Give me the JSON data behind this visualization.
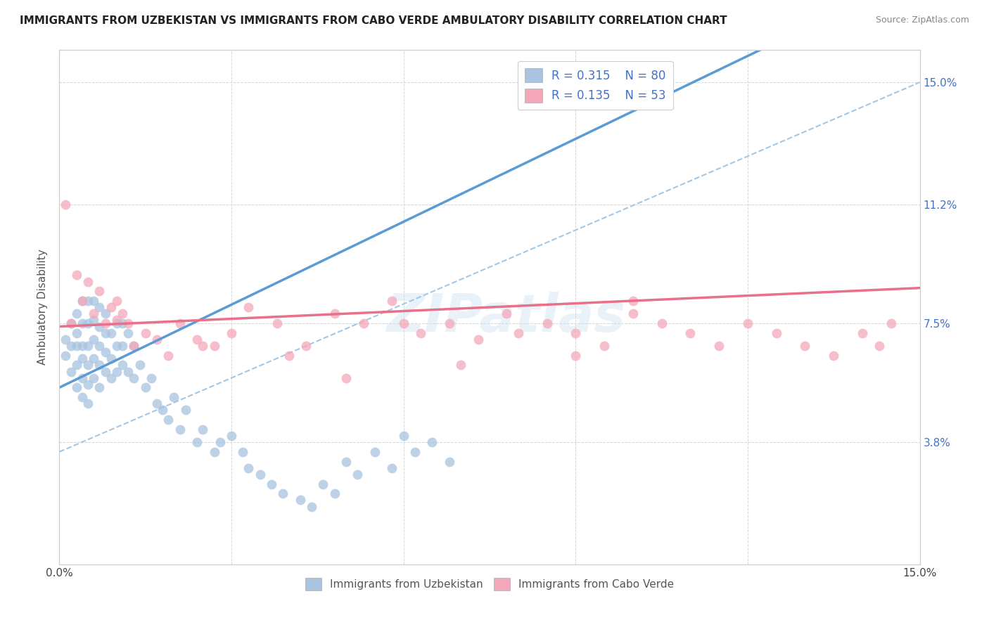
{
  "title": "IMMIGRANTS FROM UZBEKISTAN VS IMMIGRANTS FROM CABO VERDE AMBULATORY DISABILITY CORRELATION CHART",
  "source": "Source: ZipAtlas.com",
  "ylabel": "Ambulatory Disability",
  "xlim": [
    0.0,
    0.15
  ],
  "ylim": [
    0.0,
    0.16
  ],
  "r_uzbekistan": 0.315,
  "n_uzbekistan": 80,
  "r_cabo_verde": 0.135,
  "n_cabo_verde": 53,
  "color_uzbekistan": "#a8c4e0",
  "color_cabo_verde": "#f4a7b9",
  "color_uzbekistan_line": "#5b9bd5",
  "color_cabo_verde_line": "#e8708a",
  "color_dashed_line": "#a0c8e8",
  "watermark": "ZIPatlas",
  "uzbekistan_line_x0": 0.0,
  "uzbekistan_line_y0": 0.055,
  "uzbekistan_line_x1": 0.05,
  "uzbekistan_line_y1": 0.098,
  "cabo_verde_line_x0": 0.0,
  "cabo_verde_line_y0": 0.074,
  "cabo_verde_line_x1": 0.15,
  "cabo_verde_line_y1": 0.086,
  "dashed_line_x0": 0.0,
  "dashed_line_y0": 0.035,
  "dashed_line_x1": 0.15,
  "dashed_line_y1": 0.15,
  "uzbekistan_x": [
    0.001,
    0.001,
    0.002,
    0.002,
    0.002,
    0.003,
    0.003,
    0.003,
    0.003,
    0.003,
    0.004,
    0.004,
    0.004,
    0.004,
    0.004,
    0.004,
    0.005,
    0.005,
    0.005,
    0.005,
    0.005,
    0.005,
    0.006,
    0.006,
    0.006,
    0.006,
    0.006,
    0.007,
    0.007,
    0.007,
    0.007,
    0.007,
    0.008,
    0.008,
    0.008,
    0.008,
    0.009,
    0.009,
    0.009,
    0.01,
    0.01,
    0.01,
    0.011,
    0.011,
    0.011,
    0.012,
    0.012,
    0.013,
    0.013,
    0.014,
    0.015,
    0.016,
    0.017,
    0.018,
    0.019,
    0.02,
    0.021,
    0.022,
    0.024,
    0.025,
    0.027,
    0.028,
    0.03,
    0.032,
    0.033,
    0.035,
    0.037,
    0.039,
    0.042,
    0.044,
    0.046,
    0.048,
    0.05,
    0.052,
    0.055,
    0.058,
    0.06,
    0.062,
    0.065,
    0.068
  ],
  "uzbekistan_y": [
    0.065,
    0.07,
    0.06,
    0.068,
    0.075,
    0.055,
    0.062,
    0.068,
    0.072,
    0.078,
    0.052,
    0.058,
    0.064,
    0.068,
    0.075,
    0.082,
    0.05,
    0.056,
    0.062,
    0.068,
    0.075,
    0.082,
    0.058,
    0.064,
    0.07,
    0.076,
    0.082,
    0.055,
    0.062,
    0.068,
    0.074,
    0.08,
    0.06,
    0.066,
    0.072,
    0.078,
    0.058,
    0.064,
    0.072,
    0.06,
    0.068,
    0.075,
    0.062,
    0.068,
    0.075,
    0.06,
    0.072,
    0.058,
    0.068,
    0.062,
    0.055,
    0.058,
    0.05,
    0.048,
    0.045,
    0.052,
    0.042,
    0.048,
    0.038,
    0.042,
    0.035,
    0.038,
    0.04,
    0.035,
    0.03,
    0.028,
    0.025,
    0.022,
    0.02,
    0.018,
    0.025,
    0.022,
    0.032,
    0.028,
    0.035,
    0.03,
    0.04,
    0.035,
    0.038,
    0.032
  ],
  "cabo_verde_x": [
    0.001,
    0.002,
    0.003,
    0.004,
    0.005,
    0.006,
    0.007,
    0.008,
    0.009,
    0.01,
    0.011,
    0.012,
    0.013,
    0.015,
    0.017,
    0.019,
    0.021,
    0.024,
    0.027,
    0.03,
    0.033,
    0.038,
    0.043,
    0.048,
    0.053,
    0.058,
    0.063,
    0.068,
    0.073,
    0.078,
    0.085,
    0.09,
    0.095,
    0.1,
    0.105,
    0.11,
    0.115,
    0.12,
    0.125,
    0.13,
    0.135,
    0.14,
    0.143,
    0.145,
    0.01,
    0.025,
    0.04,
    0.06,
    0.08,
    0.1,
    0.05,
    0.07,
    0.09
  ],
  "cabo_verde_y": [
    0.112,
    0.075,
    0.09,
    0.082,
    0.088,
    0.078,
    0.085,
    0.075,
    0.08,
    0.082,
    0.078,
    0.075,
    0.068,
    0.072,
    0.07,
    0.065,
    0.075,
    0.07,
    0.068,
    0.072,
    0.08,
    0.075,
    0.068,
    0.078,
    0.075,
    0.082,
    0.072,
    0.075,
    0.07,
    0.078,
    0.075,
    0.072,
    0.068,
    0.078,
    0.075,
    0.072,
    0.068,
    0.075,
    0.072,
    0.068,
    0.065,
    0.072,
    0.068,
    0.075,
    0.076,
    0.068,
    0.065,
    0.075,
    0.072,
    0.082,
    0.058,
    0.062,
    0.065
  ]
}
